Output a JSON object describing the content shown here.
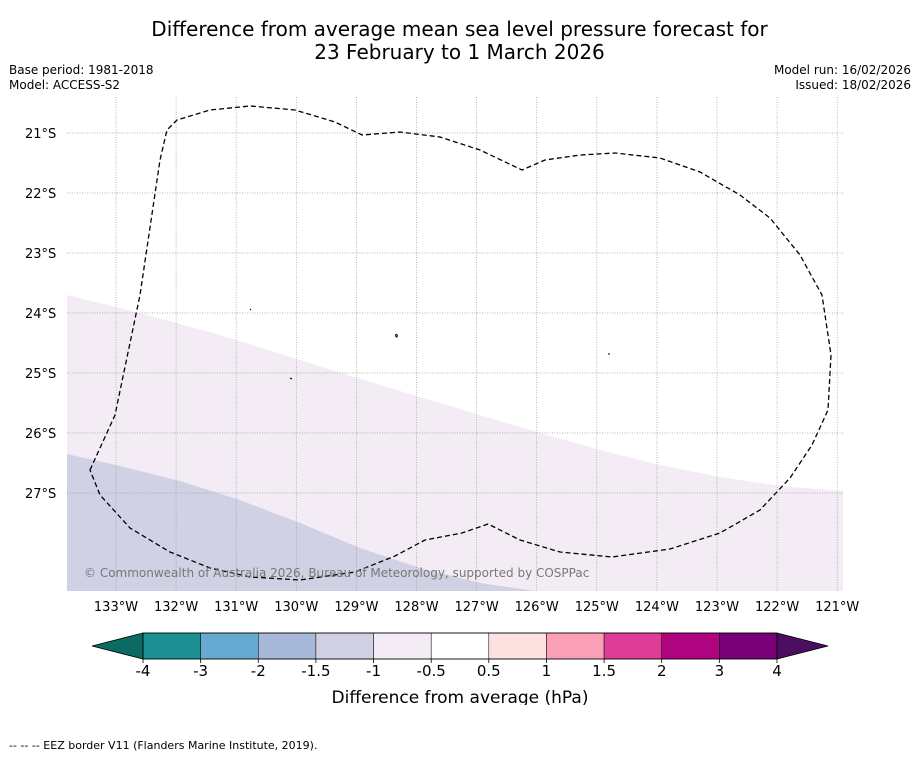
{
  "title": {
    "line1": "Difference from average mean sea level pressure forecast for",
    "line2": "23 February to 1 March 2026"
  },
  "meta": {
    "base_period": "Base period: 1981-2018",
    "model": "Model: ACCESS-S2",
    "model_run": "Model run: 16/02/2026",
    "issued": "Issued: 18/02/2026"
  },
  "map": {
    "lat_labels": [
      "21°S",
      "22°S",
      "23°S",
      "24°S",
      "25°S",
      "26°S",
      "27°S"
    ],
    "lon_labels": [
      "133°W",
      "132°W",
      "131°W",
      "130°W",
      "129°W",
      "128°W",
      "127°W",
      "126°W",
      "125°W",
      "124°W",
      "123°W",
      "122°W",
      "121°W"
    ],
    "copyright": "© Commonwealth of Australia 2026, Bureau of Meteorology, supported by COSPPac",
    "regions": [
      {
        "range": "-1.5 to -1",
        "color": "#d1d1e5"
      },
      {
        "range": "-1 to -0.5",
        "color": "#f3ecf5"
      }
    ],
    "eez_style": "dashed"
  },
  "colorbar": {
    "ticks": [
      "-4",
      "-3",
      "-2",
      "-1.5",
      "-1",
      "-0.5",
      "0.5",
      "1",
      "1.5",
      "2",
      "3",
      "4"
    ],
    "colors": [
      "#1b8f92",
      "#67aad1",
      "#a8b8d8",
      "#d1d1e5",
      "#f3ecf5",
      "#ffffff",
      "#fde1e1",
      "#f9a0b8",
      "#de3c96",
      "#b0037f",
      "#7a0078"
    ],
    "under_color": "#0a6b63",
    "over_color": "#4d0d60",
    "label": "Difference from average (hPa)"
  },
  "footnote": "-- -- -- EEZ border V11 (Flanders Marine Institute, 2019)."
}
